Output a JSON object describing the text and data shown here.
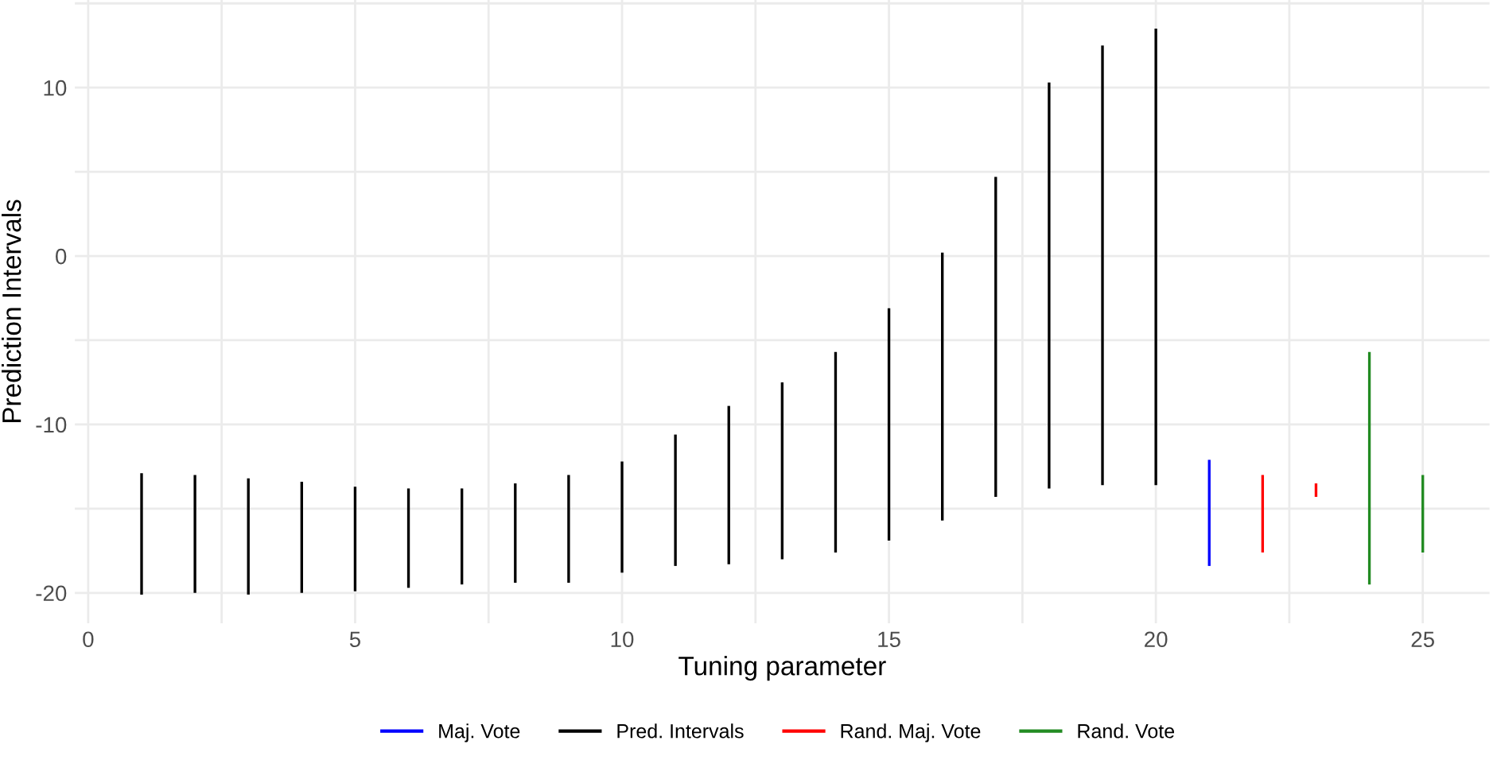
{
  "chart_data": {
    "type": "bar",
    "xlabel": "Tuning parameter",
    "ylabel": "Prediction Intervals",
    "series": [
      {
        "name": "Maj. Vote",
        "color": "#0000ff",
        "x": [
          21
        ],
        "base": [
          -18.4
        ],
        "values": [
          6.3
        ]
      },
      {
        "name": "Pred. Intervals",
        "color": "#000000",
        "x": [
          1,
          2,
          3,
          4,
          5,
          6,
          7,
          8,
          9,
          10,
          11,
          12,
          13,
          14,
          15,
          16,
          17,
          18,
          19,
          20
        ],
        "base": [
          -20.1,
          -20.0,
          -20.1,
          -20.0,
          -19.9,
          -19.7,
          -19.5,
          -19.4,
          -19.4,
          -18.8,
          -18.4,
          -18.3,
          -18.0,
          -17.6,
          -16.9,
          -15.7,
          -14.3,
          -13.8,
          -13.6,
          -13.6
        ],
        "values": [
          7.2,
          7.0,
          6.9,
          6.6,
          6.2,
          5.9,
          5.7,
          5.9,
          6.4,
          6.6,
          7.8,
          9.4,
          10.5,
          11.9,
          13.8,
          15.9,
          19.0,
          24.1,
          26.1,
          27.1
        ]
      },
      {
        "name": "Rand. Maj. Vote",
        "color": "#ff0000",
        "x": [
          22,
          23
        ],
        "base": [
          -17.6,
          -14.3
        ],
        "values": [
          4.6,
          0.8
        ]
      },
      {
        "name": "Rand. Vote",
        "color": "#228b22",
        "x": [
          24,
          25
        ],
        "base": [
          -19.5,
          -17.6
        ],
        "values": [
          13.8,
          4.6
        ]
      }
    ],
    "xlim": [
      -0.25,
      26.25
    ],
    "xticks": [
      0,
      {
        "value": 2.5,
        "label": null
      },
      5,
      {
        "value": 7.5,
        "label": null
      },
      10,
      {
        "value": 12.5,
        "label": null
      },
      15,
      {
        "value": 17.5,
        "label": null
      },
      20,
      {
        "value": 22.5,
        "label": null
      },
      25
    ],
    "ylim": [
      -21.8,
      15.2
    ],
    "yticks": [
      -20,
      {
        "value": -15,
        "label": null
      },
      -10,
      {
        "value": -5,
        "label": null
      },
      0,
      {
        "value": 5,
        "label": null
      },
      10,
      {
        "value": 15,
        "label": null
      }
    ],
    "grid": true,
    "legend": "bottom"
  }
}
